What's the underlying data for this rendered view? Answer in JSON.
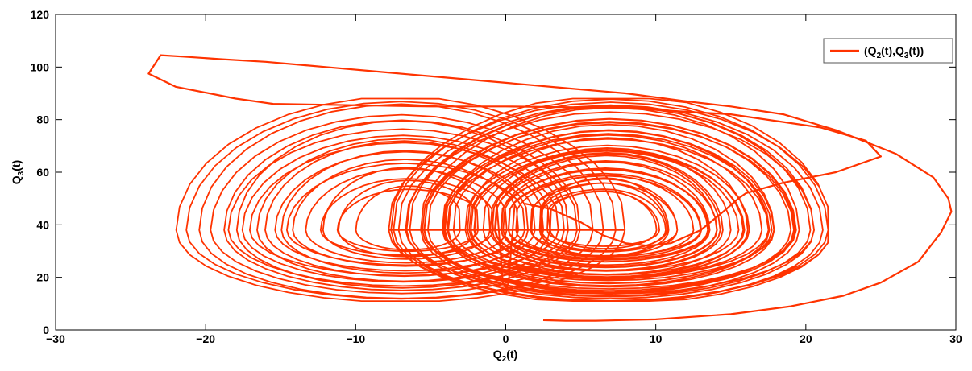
{
  "chart_data": {
    "type": "line",
    "title": "",
    "xlabel": {
      "base": "Q",
      "sub": "2",
      "suffix": "(t)"
    },
    "ylabel": {
      "base": "Q",
      "sub": "3",
      "suffix": "(t)"
    },
    "xlim": [
      -30,
      30
    ],
    "ylim": [
      0,
      120
    ],
    "xticks": [
      -30,
      -20,
      -10,
      0,
      10,
      20,
      30
    ],
    "yticks": [
      0,
      20,
      40,
      60,
      80,
      100,
      120
    ],
    "xtick_labels": [
      "−30",
      "−20",
      "−10",
      "0",
      "10",
      "20",
      "30"
    ],
    "ytick_labels": [
      "0",
      "20",
      "40",
      "60",
      "80",
      "100",
      "120"
    ],
    "grid": false,
    "legend": {
      "placement": "top-right",
      "entries": [
        {
          "pre": "(Q",
          "sub1": "2",
          "mid": "(t),Q",
          "sub2": "3",
          "post": "(t))"
        }
      ]
    },
    "series": [
      {
        "color": "#ff3300",
        "description": "Lorenz-type butterfly attractor trajectory",
        "x": [
          2.5,
          4,
          6,
          10,
          15,
          19,
          22.5,
          25,
          27.5,
          29,
          29.7,
          29.5,
          28.5,
          26,
          22,
          18.5,
          15,
          12,
          8,
          4,
          0,
          -4,
          -8,
          -12,
          -16,
          -19,
          -21.5,
          -23,
          -23.8,
          -22,
          -18,
          -15.5,
          -5,
          0,
          7.6,
          15,
          21,
          24,
          25,
          22,
          18.5,
          16,
          15.5,
          14.5,
          13,
          11,
          9.5,
          8,
          6.5,
          5,
          3,
          1.3
        ],
        "y": [
          3.7,
          3.5,
          3.5,
          4,
          6,
          9,
          13,
          18,
          26,
          37,
          45,
          50,
          58,
          67,
          76,
          82,
          85,
          87,
          90,
          92,
          94,
          96,
          98,
          100,
          102,
          103,
          104,
          104.5,
          97.5,
          92.5,
          88,
          86,
          85,
          85,
          84.5,
          82,
          77,
          72,
          66,
          60,
          56,
          52,
          50,
          45,
          38,
          33,
          32,
          33,
          36,
          41,
          46,
          48
        ],
        "dense_region": {
          "left_lobe_center": [
            -6.5,
            38
          ],
          "right_lobe_center": [
            6.5,
            38
          ],
          "x_extent": [
            -23,
            21.5
          ],
          "y_extent": [
            11,
            88
          ]
        }
      }
    ]
  }
}
